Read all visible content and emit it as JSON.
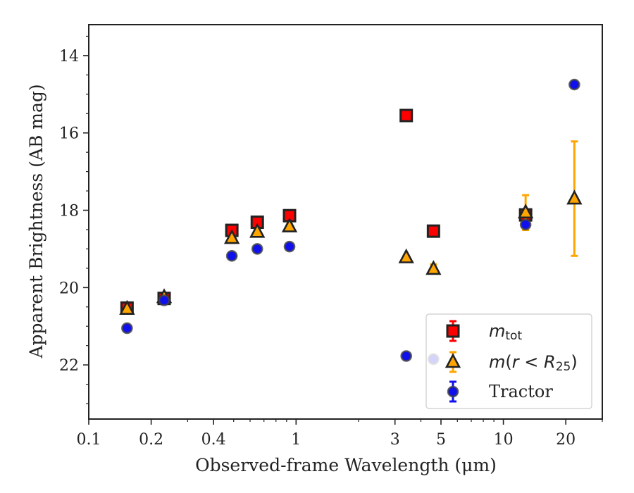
{
  "chart_data": {
    "type": "scatter",
    "xlabel": "Observed-frame Wavelength (μm)",
    "ylabel": "Apparent Brightness (AB mag)",
    "x_scale": "log",
    "x_range": [
      0.1,
      30
    ],
    "y_range": [
      23.4,
      13.2
    ],
    "y_inverted": true,
    "x_ticks": [
      {
        "value": 0.1,
        "label": "0.1"
      },
      {
        "value": 0.2,
        "label": "0.2"
      },
      {
        "value": 0.4,
        "label": "0.4"
      },
      {
        "value": 1,
        "label": "1"
      },
      {
        "value": 3,
        "label": "3"
      },
      {
        "value": 5,
        "label": "5"
      },
      {
        "value": 10,
        "label": "10"
      },
      {
        "value": 20,
        "label": "20"
      }
    ],
    "y_ticks": [
      {
        "value": 14,
        "label": "14"
      },
      {
        "value": 16,
        "label": "16"
      },
      {
        "value": 18,
        "label": "18"
      },
      {
        "value": 20,
        "label": "20"
      },
      {
        "value": 22,
        "label": "22"
      }
    ],
    "legend_position": "lower-right",
    "series": [
      {
        "name": "m_tot",
        "legend_label": {
          "italic": "m",
          "sub": "tot"
        },
        "marker": "square",
        "color": "#ff0000",
        "edge": "#222222",
        "points": [
          {
            "x": 0.153,
            "y": 20.53,
            "err": 0.05
          },
          {
            "x": 0.231,
            "y": 20.28,
            "err": 0.05
          },
          {
            "x": 0.49,
            "y": 18.52,
            "err": 0.03
          },
          {
            "x": 0.65,
            "y": 18.31,
            "err": 0.03
          },
          {
            "x": 0.93,
            "y": 18.14,
            "err": 0.03
          },
          {
            "x": 3.4,
            "y": 15.55,
            "err": 0.03
          },
          {
            "x": 4.6,
            "y": 18.54,
            "err": 0.03
          },
          {
            "x": 12.8,
            "y": 18.12,
            "err": 0.05
          }
        ]
      },
      {
        "name": "m(r < R25)",
        "legend_label": {
          "italic": "m",
          "text": "(",
          "italic2": "r",
          "text2": " < ",
          "italic3": "R",
          "sub": "25",
          "text3": ")"
        },
        "marker": "triangle",
        "color": "#ffa500",
        "edge": "#222222",
        "points": [
          {
            "x": 0.153,
            "y": 20.55,
            "err": 0.05
          },
          {
            "x": 0.231,
            "y": 20.25,
            "err": 0.05
          },
          {
            "x": 0.49,
            "y": 18.72,
            "err": 0.05
          },
          {
            "x": 0.65,
            "y": 18.56,
            "err": 0.05
          },
          {
            "x": 0.93,
            "y": 18.42,
            "err": 0.05
          },
          {
            "x": 3.4,
            "y": 19.22,
            "err": 0.05
          },
          {
            "x": 4.6,
            "y": 19.52,
            "err": 0.12
          },
          {
            "x": 12.8,
            "y": 18.06,
            "err": 0.45
          },
          {
            "x": 22.0,
            "y": 17.7,
            "err": 1.48
          }
        ]
      },
      {
        "name": "Tractor",
        "legend_label": {
          "text": "Tractor"
        },
        "marker": "circle",
        "color": "#1010ee",
        "edge": "#444444",
        "points": [
          {
            "x": 0.153,
            "y": 21.05,
            "err": 0.05
          },
          {
            "x": 0.231,
            "y": 20.33,
            "err": 0.05
          },
          {
            "x": 0.49,
            "y": 19.18,
            "err": 0.05
          },
          {
            "x": 0.65,
            "y": 19.0,
            "err": 0.05
          },
          {
            "x": 0.93,
            "y": 18.94,
            "err": 0.05
          },
          {
            "x": 3.4,
            "y": 21.77,
            "err": 0.05
          },
          {
            "x": 4.6,
            "y": 21.85,
            "err": 0.05
          },
          {
            "x": 12.8,
            "y": 18.37,
            "err": 0.05
          },
          {
            "x": 22.0,
            "y": 14.75,
            "err": 0.05
          }
        ]
      }
    ]
  }
}
